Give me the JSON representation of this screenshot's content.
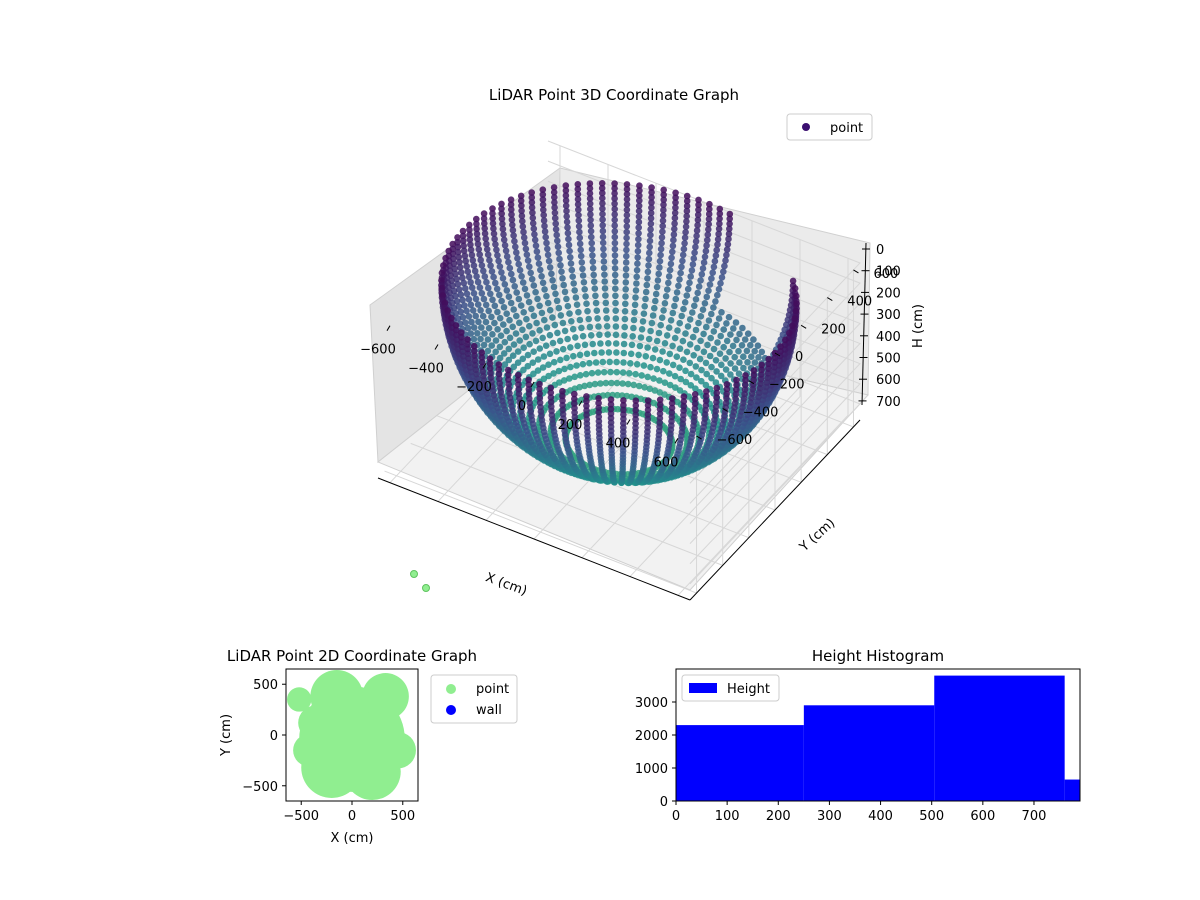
{
  "chart_data": [
    {
      "type": "scatter",
      "title": "LiDAR Point 3D Coordinate Graph",
      "xlabel": "X (cm)",
      "ylabel": "Y (cm)",
      "zlabel": "H (cm)",
      "xticks": [
        "−600",
        "−400",
        "−200",
        "0",
        "200",
        "400",
        "600"
      ],
      "yticks": [
        "−600",
        "−400",
        "−200",
        "0",
        "200",
        "400",
        "600"
      ],
      "zticks": [
        "0",
        "100",
        "200",
        "300",
        "400",
        "500",
        "600",
        "700"
      ],
      "xlim": [
        -650,
        650
      ],
      "ylim": [
        -650,
        650
      ],
      "zlim": [
        780,
        0
      ],
      "legend": {
        "label": "point",
        "color": "#3b0f70",
        "placement": "upper-right"
      },
      "colormap": "viridis",
      "grid": true,
      "series": [
        {
          "name": "point",
          "description_of_shape": "hemispherical shell of wall points, radius ~650 cm, heights 0-780 cm"
        }
      ]
    },
    {
      "type": "scatter",
      "title": "LiDAR Point 2D Coordinate Graph",
      "xlabel": "X (cm)",
      "ylabel": "Y (cm)",
      "xticks": [
        "−500",
        "0",
        "500"
      ],
      "yticks": [
        "−500",
        "0",
        "500"
      ],
      "xlim": [
        -650,
        650
      ],
      "ylim": [
        -650,
        650
      ],
      "legend": {
        "placement": "outside-right",
        "entries": [
          {
            "label": "point",
            "color": "#90ee90"
          },
          {
            "label": "wall",
            "color": "#0000ff"
          }
        ]
      },
      "grid": false
    },
    {
      "type": "bar",
      "title": "Height Histogram",
      "xlabel": "",
      "ylabel": "",
      "legend": {
        "label": "Height",
        "color": "#0000ff",
        "placement": "upper-left"
      },
      "bins": [
        {
          "start": 0,
          "end": 250,
          "count": 2300
        },
        {
          "start": 250,
          "end": 505,
          "count": 2900
        },
        {
          "start": 505,
          "end": 760,
          "count": 3800
        },
        {
          "start": 760,
          "end": 790,
          "count": 650
        }
      ],
      "xticks": [
        "0",
        "100",
        "200",
        "300",
        "400",
        "500",
        "600",
        "700"
      ],
      "yticks": [
        "0",
        "1000",
        "2000",
        "3000"
      ],
      "xlim": [
        0,
        790
      ],
      "ylim": [
        0,
        4000
      ],
      "grid": false
    }
  ]
}
